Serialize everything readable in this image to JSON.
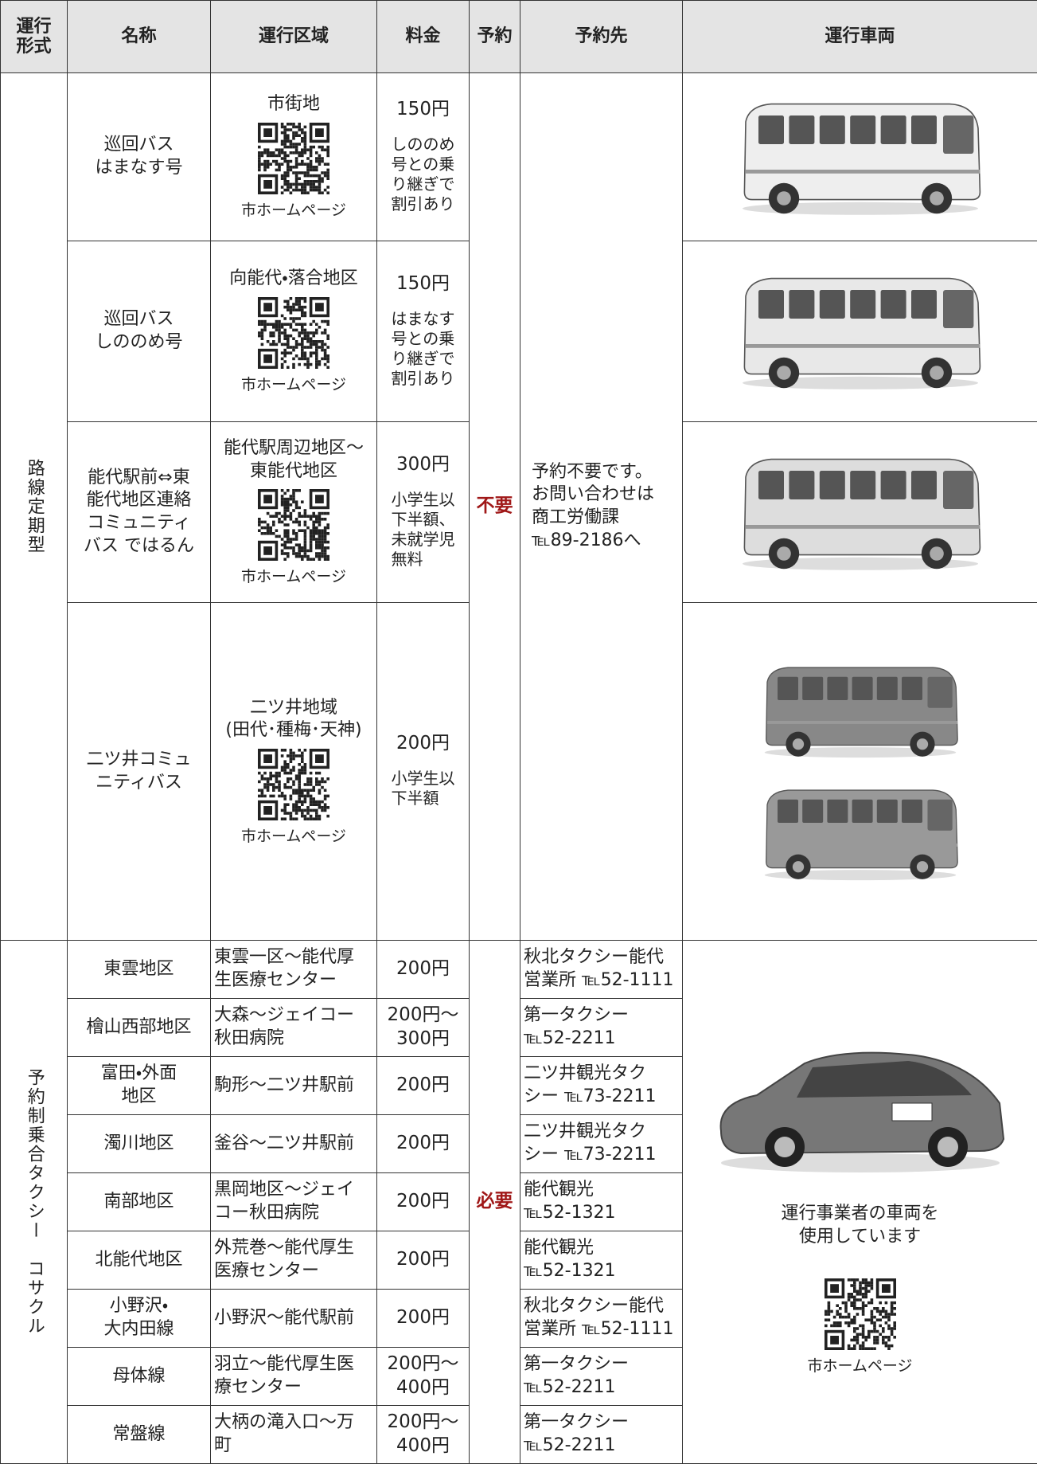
{
  "table": {
    "headers": [
      "運行\n形式",
      "名称",
      "運行区域",
      "料金",
      "予約",
      "予約先",
      "運行車両"
    ],
    "groups": [
      {
        "type": "路線定期型",
        "reservation": "不要",
        "contact": "予約不要です。\nお問い合わせは\n商工労働課\n℡89-2186へ",
        "rows": [
          {
            "name": "巡回バス\nはまなす号",
            "area": "市街地",
            "qr_caption": "市ホームページ",
            "fare": "150円",
            "fare_note": "しののめ\n号との乗\nり継ぎで\n割引あり"
          },
          {
            "name": "巡回バス\nしののめ号",
            "area": "向能代・落合地区",
            "qr_caption": "市ホームページ",
            "fare": "150円",
            "fare_note": "はまなす\n号との乗\nり継ぎで\n割引あり"
          },
          {
            "name": "能代駅前⇔東\n能代地区連絡\nコミュニティ\nバス ではるん",
            "area": "能代駅周辺地区～\n東能代地区",
            "qr_caption": "市ホームページ",
            "fare": "300円",
            "fare_note": "小学生以\n下半額、\n未就学児\n無料"
          },
          {
            "name": "二ツ井コミュ\nニティバス",
            "area": "二ツ井地域\n(田代･種梅･天神)",
            "qr_caption": "市ホームページ",
            "fare": "200円",
            "fare_note": "小学生以\n下半額"
          }
        ]
      },
      {
        "type": "予約制乗合タクシー　コサクル",
        "reservation": "必要",
        "vehicle_text": "運行事業者の車両を\n使用しています",
        "qr_caption": "市ホームページ",
        "rows": [
          {
            "name": "東雲地区",
            "area": "東雲一区～能代厚\n生医療センター",
            "fare": "200円",
            "contact": "秋北タクシー能代\n営業所 ℡52-1111"
          },
          {
            "name": "檜山西部地区",
            "area": "大森～ジェイコー\n秋田病院",
            "fare": "200円～\n300円",
            "contact": "第一タクシー\n℡52-2211"
          },
          {
            "name": "富田・外面\n地区",
            "area": "駒形～二ツ井駅前",
            "fare": "200円",
            "contact": "二ツ井観光タク\nシー ℡73-2211"
          },
          {
            "name": "濁川地区",
            "area": "釜谷～二ツ井駅前",
            "fare": "200円",
            "contact": "二ツ井観光タク\nシー ℡73-2211"
          },
          {
            "name": "南部地区",
            "area": "黒岡地区～ジェイ\nコー秋田病院",
            "fare": "200円",
            "contact": "能代観光\n℡52-1321"
          },
          {
            "name": "北能代地区",
            "area": "外荒巻～能代厚生\n医療センター",
            "fare": "200円",
            "contact": "能代観光\n℡52-1321"
          },
          {
            "name": "小野沢・\n大内田線",
            "area": "小野沢～能代駅前",
            "fare": "200円",
            "contact": "秋北タクシー能代\n営業所 ℡52-1111"
          },
          {
            "name": "母体線",
            "area": "羽立～能代厚生医\n療センター",
            "fare": "200円～\n400円",
            "contact": "第一タクシー\n℡52-2211"
          },
          {
            "name": "常盤線",
            "area": "大柄の滝入口～万\n町",
            "fare": "200円～\n400円",
            "contact": "第一タクシー\n℡52-2211"
          }
        ]
      }
    ]
  }
}
